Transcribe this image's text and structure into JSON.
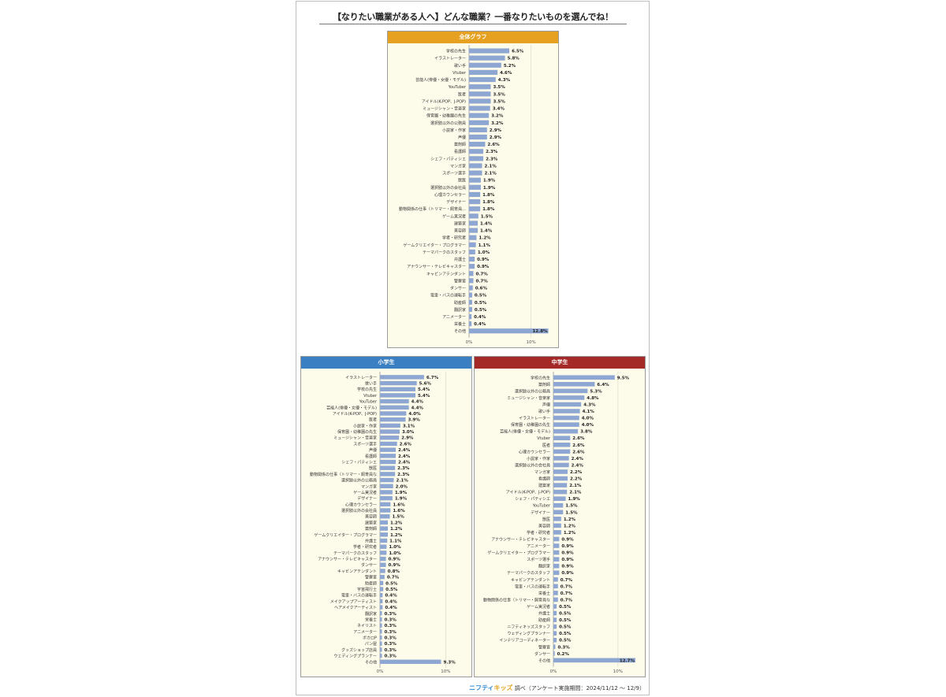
{
  "header": {
    "title": "【なりたい職業がある人へ】どんな職業？一番なりたいものを選んでね！"
  },
  "footer": {
    "brand_nifty": "ニフティ",
    "brand_kids": "キッズ",
    "note": " 調べ（アンケート実施期間：2024/11/12 ～ 12/9）"
  },
  "colors": {
    "bar": "#8ea6d2",
    "panel_bg": "#fdfbea",
    "overall_header": "#e5a11f",
    "elementary_header": "#3a7fc1",
    "junior_header": "#a32a26"
  },
  "chart_data": [
    {
      "type": "bar",
      "orientation": "horizontal",
      "title": "全体グラフ",
      "xlim": [
        0,
        14
      ],
      "ticks": [
        {
          "value": 0,
          "label": "0%"
        },
        {
          "value": 10,
          "label": "10%"
        }
      ],
      "categories": [
        "学校の先生",
        "イラストレーター",
        "歌い手",
        "Vtuber",
        "芸能人(俳優・女優・モデル)",
        "YouTuber",
        "医者",
        "アイドル(K-POP、J-POP)",
        "ミュージシャン・音楽家",
        "保育園・幼稚園の先生",
        "選択肢以外の公務員",
        "小説家・作家",
        "声優",
        "薬剤師",
        "看護師",
        "シェフ・パティシエ",
        "マンガ家",
        "スポーツ選手",
        "獣医",
        "選択肢以外の会社員",
        "心理カウンセラー",
        "デザイナー",
        "動物関係の仕事（トリマー・飼育員…",
        "ゲーム実況者",
        "建築家",
        "美容師",
        "学者・研究者",
        "ゲームクリエイター・プログラマー",
        "テーマパークのスタッフ",
        "弁護士",
        "アナウンサー・テレビキャスター",
        "キャビンアテンダント",
        "警察官",
        "ダンサー",
        "電車・バスの運転手",
        "助産師",
        "翻訳家",
        "アニメーター",
        "栄養士",
        "その他"
      ],
      "values": [
        6.5,
        5.8,
        5.2,
        4.6,
        4.3,
        3.5,
        3.5,
        3.5,
        3.4,
        3.2,
        3.2,
        2.9,
        2.9,
        2.6,
        2.3,
        2.3,
        2.1,
        2.1,
        1.9,
        1.9,
        1.8,
        1.8,
        1.8,
        1.5,
        1.4,
        1.4,
        1.2,
        1.1,
        1.0,
        0.9,
        0.9,
        0.7,
        0.7,
        0.6,
        0.5,
        0.5,
        0.5,
        0.4,
        0.4,
        12.8
      ],
      "labels": [
        "6.5%",
        "5.8%",
        "5.2%",
        "4.6%",
        "4.3%",
        "3.5%",
        "3.5%",
        "3.5%",
        "3.4%",
        "3.2%",
        "3.2%",
        "2.9%",
        "2.9%",
        "2.6%",
        "2.3%",
        "2.3%",
        "2.1%",
        "2.1%",
        "1.9%",
        "1.9%",
        "1.8%",
        "1.8%",
        "1.8%",
        "1.5%",
        "1.4%",
        "1.4%",
        "1.2%",
        "1.1%",
        "1.0%",
        "0.9%",
        "0.9%",
        "0.7%",
        "0.7%",
        "0.6%",
        "0.5%",
        "0.5%",
        "0.5%",
        "0.4%",
        "0.4%",
        "12.8%"
      ]
    },
    {
      "type": "bar",
      "orientation": "horizontal",
      "title": "小学生",
      "xlim": [
        0,
        12
      ],
      "ticks": [
        {
          "value": 0,
          "label": "0%"
        },
        {
          "value": 10,
          "label": "10%"
        }
      ],
      "categories": [
        "イラストレーター",
        "歌い手",
        "学校の先生",
        "Vtuber",
        "YouTuber",
        "芸能人(俳優・女優・モデル)",
        "アイドル(K-POP、J-POP)",
        "医者",
        "小説家・作家",
        "保育園・幼稚園の先生",
        "ミュージシャン・音楽家",
        "スポーツ選手",
        "声優",
        "看護師",
        "シェフ・パティシエ",
        "獣医",
        "動物関係の仕事（トリマー・飼育員な",
        "選択肢以外の公務員",
        "マンガ家",
        "ゲーム実況者",
        "デザイナー",
        "心理カウンセラー",
        "選択肢以外の会社員",
        "美容師",
        "建築家",
        "薬剤師",
        "ゲームクリエイター・プログラマー",
        "弁護士",
        "学者・研究者",
        "テーマパークのスタッフ",
        "アナウンサー・テレビキャスター",
        "ダンサー",
        "キャビンアテンダント",
        "警察官",
        "助産師",
        "宇宙飛行士",
        "電車・バスの運転手",
        "メイクアップアーティスト",
        "ヘアメイクアーティスト",
        "翻訳家",
        "栄養士",
        "ネイリスト",
        "アニメーター",
        "ボカロP",
        "パン屋",
        "グッズショップ店員",
        "ウェディングプランナー",
        "その他"
      ],
      "values": [
        6.7,
        5.6,
        5.4,
        5.4,
        4.4,
        4.4,
        4.0,
        3.9,
        3.1,
        3.0,
        2.9,
        2.6,
        2.4,
        2.4,
        2.4,
        2.3,
        2.3,
        2.1,
        2.0,
        1.9,
        1.9,
        1.6,
        1.6,
        1.5,
        1.2,
        1.2,
        1.2,
        1.1,
        1.0,
        1.0,
        0.9,
        0.9,
        0.8,
        0.7,
        0.5,
        0.5,
        0.4,
        0.4,
        0.4,
        0.3,
        0.3,
        0.3,
        0.3,
        0.3,
        0.3,
        0.3,
        0.3,
        9.3
      ],
      "labels": [
        "6.7%",
        "5.6%",
        "5.4%",
        "5.4%",
        "4.4%",
        "4.4%",
        "4.0%",
        "3.9%",
        "3.1%",
        "3.0%",
        "2.9%",
        "2.6%",
        "2.4%",
        "2.4%",
        "2.4%",
        "2.3%",
        "2.3%",
        "2.1%",
        "2.0%",
        "1.9%",
        "1.9%",
        "1.6%",
        "1.6%",
        "1.5%",
        "1.2%",
        "1.2%",
        "1.2%",
        "1.1%",
        "1.0%",
        "1.0%",
        "0.9%",
        "0.9%",
        "0.8%",
        "0.7%",
        "0.5%",
        "0.5%",
        "0.4%",
        "0.4%",
        "0.4%",
        "0.3%",
        "0.3%",
        "0.3%",
        "0.3%",
        "0.3%",
        "0.3%",
        "0.3%",
        "0.3%",
        "9.3%"
      ]
    },
    {
      "type": "bar",
      "orientation": "horizontal",
      "title": "中学生",
      "xlim": [
        0,
        12.7
      ],
      "ticks": [
        {
          "value": 0,
          "label": "0%"
        },
        {
          "value": 10,
          "label": "10%"
        }
      ],
      "categories": [
        "学校の先生",
        "薬剤師",
        "選択肢以外の公務員",
        "ミュージシャン・音楽家",
        "声優",
        "歌い手",
        "イラストレーター",
        "保育園・幼稚園の先生",
        "芸能人(俳優・女優・モデル)",
        "Vtuber",
        "医者",
        "心理カウンセラー",
        "小説家・作家",
        "選択肢以外の会社員",
        "マンガ家",
        "看護師",
        "建築家",
        "アイドル(K-POP、J-POP)",
        "シェフ・パティシエ",
        "YouTuber",
        "デザイナー",
        "獣医",
        "美容師",
        "学者・研究者",
        "アナウンサー・テレビキャスター",
        "アニメーター",
        "ゲームクリエイター・プログラマー",
        "スポーツ選手",
        "翻訳家",
        "テーマパークのスタッフ",
        "キャビンアテンダント",
        "電車・バスの運転手",
        "栄養士",
        "動物関係の仕事（トリマー・飼育員な",
        "ゲーム実況者",
        "弁護士",
        "助産師",
        "ニフティキッズスタッフ",
        "ウェディングプランナー",
        "インテリアコーディネーター",
        "警察官",
        "ダンサー",
        "その他"
      ],
      "values": [
        9.5,
        6.4,
        5.3,
        4.8,
        4.3,
        4.1,
        4.0,
        4.0,
        3.8,
        2.6,
        2.6,
        2.6,
        2.4,
        2.4,
        2.2,
        2.2,
        2.1,
        2.1,
        1.9,
        1.5,
        1.5,
        1.2,
        1.2,
        1.2,
        0.9,
        0.9,
        0.9,
        0.9,
        0.9,
        0.9,
        0.7,
        0.7,
        0.7,
        0.7,
        0.5,
        0.5,
        0.5,
        0.5,
        0.5,
        0.5,
        0.3,
        0.2,
        12.7
      ],
      "labels": [
        "9.5%",
        "6.4%",
        "5.3%",
        "4.8%",
        "4.3%",
        "4.1%",
        "4.0%",
        "4.0%",
        "3.8%",
        "2.6%",
        "2.6%",
        "2.6%",
        "2.4%",
        "2.4%",
        "2.2%",
        "2.2%",
        "2.1%",
        "2.1%",
        "1.9%",
        "1.5%",
        "1.5%",
        "1.2%",
        "1.2%",
        "1.2%",
        "0.9%",
        "0.9%",
        "0.9%",
        "0.9%",
        "0.9%",
        "0.9%",
        "0.7%",
        "0.7%",
        "0.7%",
        "0.7%",
        "0.5%",
        "0.5%",
        "0.5%",
        "0.5%",
        "0.5%",
        "0.5%",
        "0.3%",
        "0.2%",
        "12.7%"
      ]
    }
  ]
}
